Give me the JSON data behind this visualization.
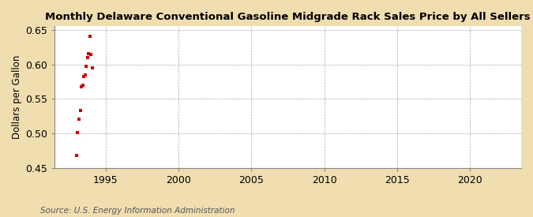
{
  "title": "Monthly Delaware Conventional Gasoline Midgrade Rack Sales Price by All Sellers",
  "ylabel": "Dollars per Gallon",
  "source": "Source: U.S. Energy Information Administration",
  "background_color": "#f0deb0",
  "plot_background_color": "#ffffff",
  "grid_color": "#aaaaaa",
  "marker_color": "#cc0000",
  "xlim": [
    1991.5,
    2023.5
  ],
  "ylim": [
    0.45,
    0.655
  ],
  "xticks": [
    1995,
    2000,
    2005,
    2010,
    2015,
    2020
  ],
  "yticks": [
    0.45,
    0.5,
    0.55,
    0.6,
    0.65
  ],
  "data_x": [
    1993.0,
    1993.083,
    1993.167,
    1993.25,
    1993.333,
    1993.417,
    1993.5,
    1993.583,
    1993.667,
    1993.75,
    1993.833,
    1993.917,
    1994.0,
    1994.083
  ],
  "data_y": [
    0.469,
    0.501,
    0.521,
    0.534,
    0.568,
    0.57,
    0.583,
    0.585,
    0.597,
    0.61,
    0.615,
    0.641,
    0.614,
    0.595
  ],
  "title_fontsize": 9.5,
  "tick_fontsize": 9,
  "ylabel_fontsize": 8.5,
  "source_fontsize": 7.5
}
